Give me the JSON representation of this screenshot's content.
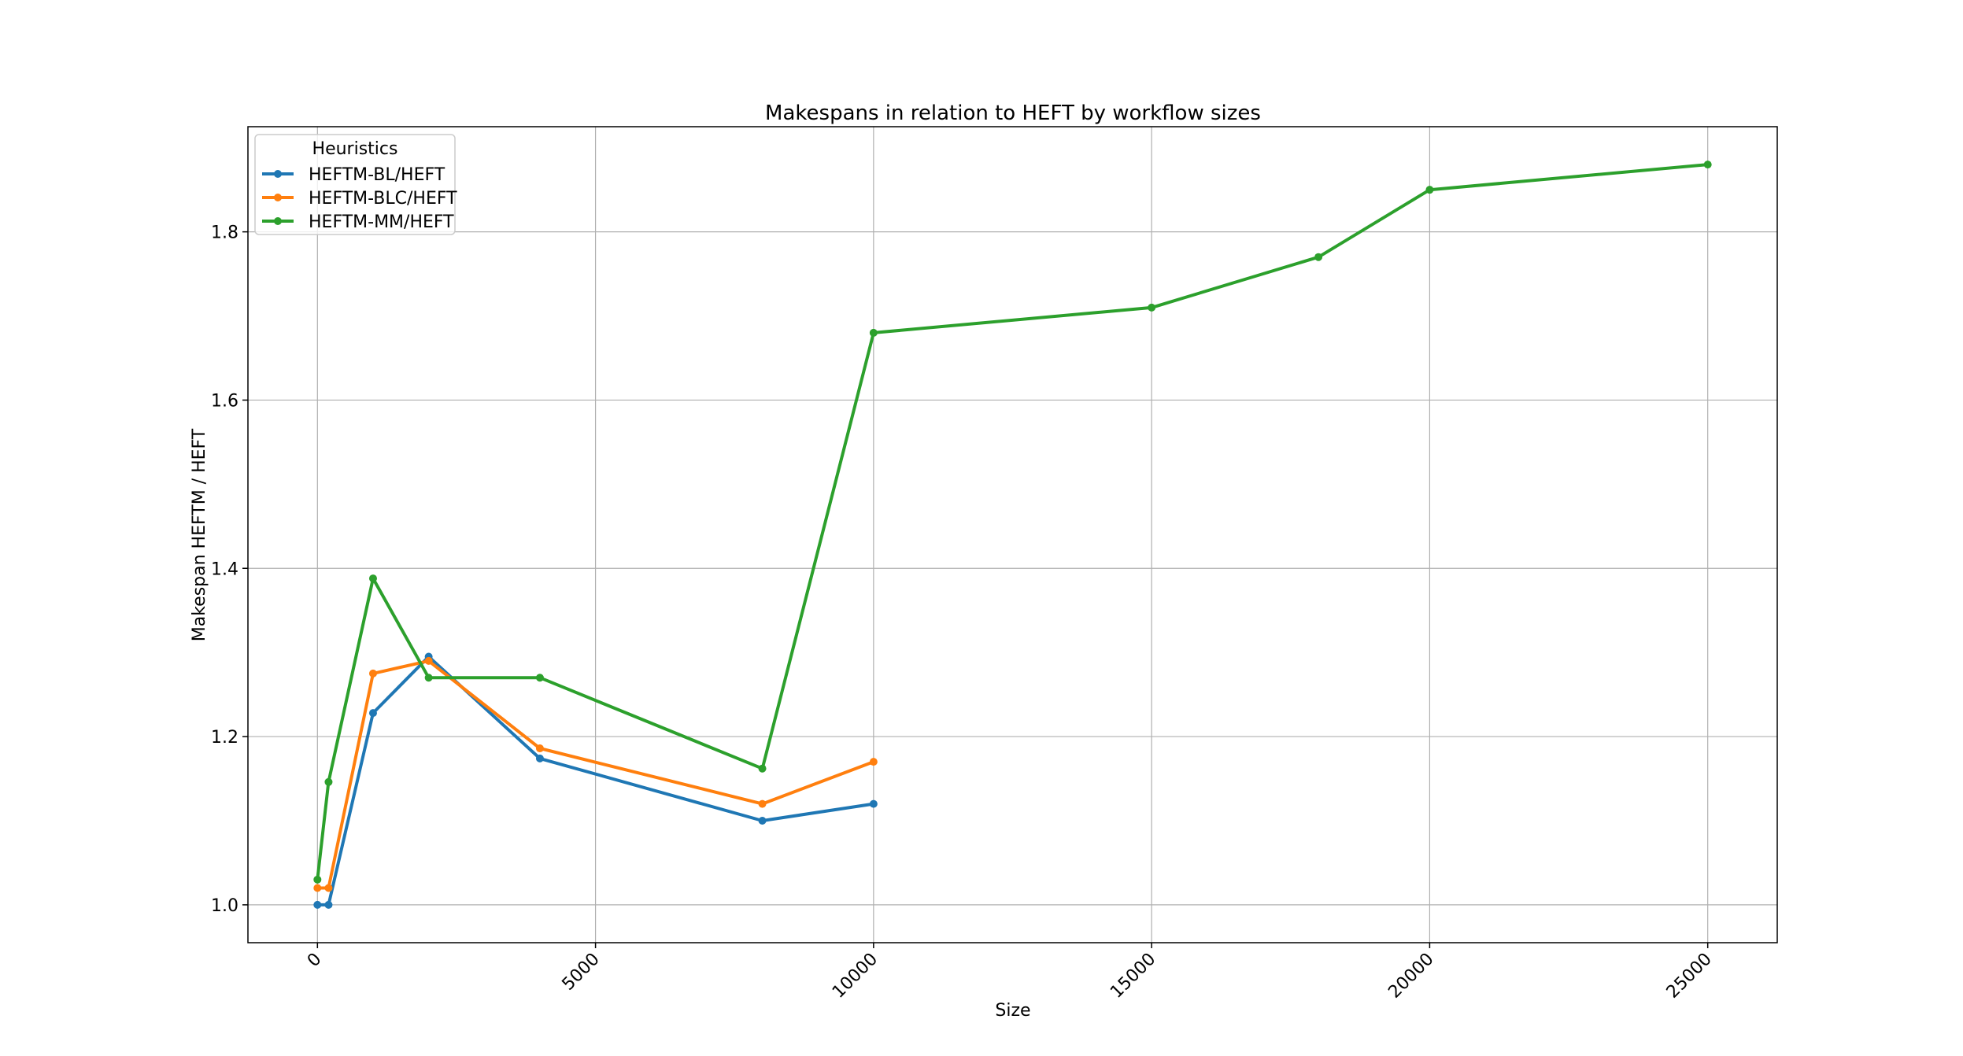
{
  "chart_data": {
    "type": "line",
    "title": "Makespans in relation to HEFT by workflow sizes",
    "xlabel": "Size",
    "ylabel": "Makespan HEFTM / HEFT",
    "xlim": [
      -1250,
      26250
    ],
    "ylim": [
      0.955,
      1.925
    ],
    "xticks": [
      0,
      5000,
      10000,
      15000,
      20000,
      25000
    ],
    "xtick_labels": [
      "0",
      "5000",
      "10000",
      "15000",
      "20000",
      "25000"
    ],
    "xtick_rotation": 45,
    "yticks": [
      1.0,
      1.2,
      1.4,
      1.6,
      1.8
    ],
    "ytick_labels": [
      "1.0",
      "1.2",
      "1.4",
      "1.6",
      "1.8"
    ],
    "grid": true,
    "legend": {
      "title": "Heuristics",
      "position": "top-left"
    },
    "series": [
      {
        "name": "HEFTM-BL/HEFT",
        "color": "#1f77b4",
        "x": [
          0,
          200,
          1000,
          2000,
          4000,
          8000,
          10000
        ],
        "y": [
          1.0,
          1.0,
          1.228,
          1.295,
          1.174,
          1.1,
          1.12
        ]
      },
      {
        "name": "HEFTM-BLC/HEFT",
        "color": "#ff7f0e",
        "x": [
          0,
          200,
          1000,
          2000,
          4000,
          8000,
          10000
        ],
        "y": [
          1.02,
          1.02,
          1.275,
          1.29,
          1.186,
          1.12,
          1.17
        ]
      },
      {
        "name": "HEFTM-MM/HEFT",
        "color": "#2ca02c",
        "x": [
          0,
          200,
          1000,
          2000,
          4000,
          8000,
          10000,
          15000,
          18000,
          20000,
          25000
        ],
        "y": [
          1.03,
          1.146,
          1.388,
          1.27,
          1.27,
          1.162,
          1.68,
          1.71,
          1.77,
          1.85,
          1.88
        ]
      }
    ]
  }
}
